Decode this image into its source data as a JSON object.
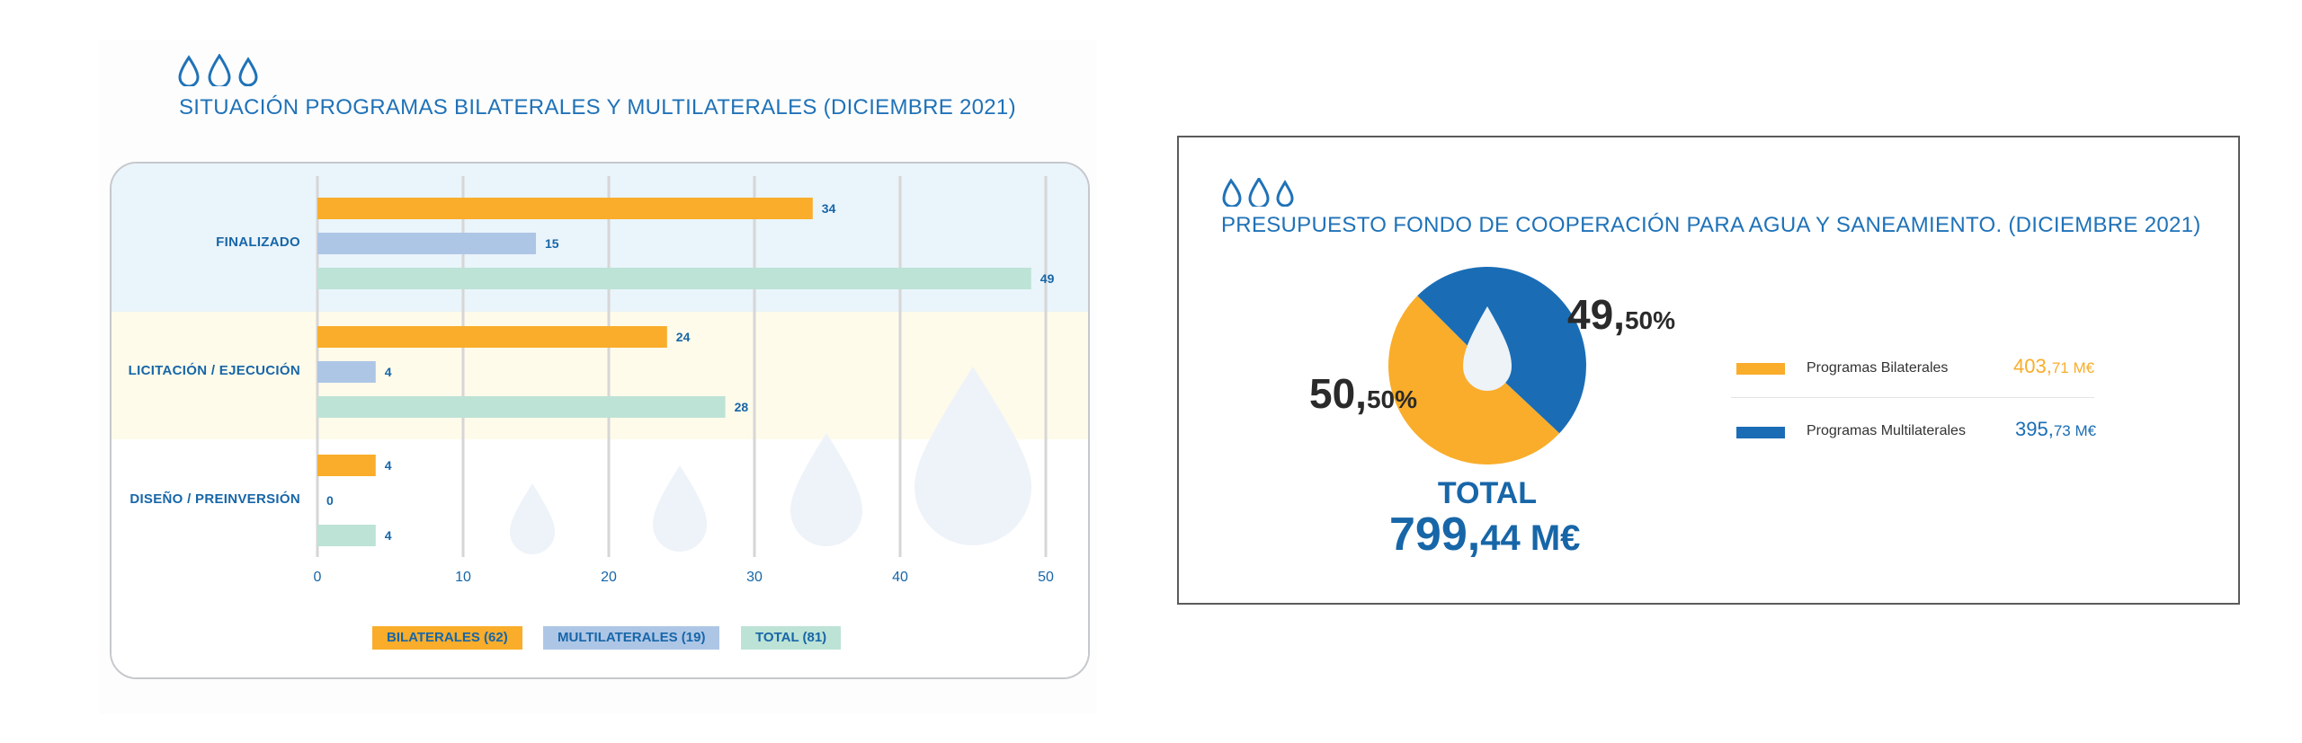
{
  "left_panel": {
    "title": "SITUACIÓN PROGRAMAS BILATERALES Y MULTILATERALES (DICIEMBRE 2021)"
  },
  "right_panel": {
    "title": "PRESUPUESTO FONDO DE COOPERACIÓN PARA AGUA Y SANEAMIENTO. (DICIEMBRE 2021)",
    "slices": [
      {
        "int": "50,",
        "dec": "50%"
      },
      {
        "int": "49,",
        "dec": "50%"
      }
    ],
    "total_label": "TOTAL",
    "total_int": "799,",
    "total_dec": "44 M€",
    "legend": [
      {
        "name": "Programas Bilaterales",
        "value_int": "403,",
        "value_dec": "71 M€",
        "color": "#f9ad2a"
      },
      {
        "name": "Programas Multilaterales",
        "value_int": "395,",
        "value_dec": "73 M€",
        "color": "#1a6db5"
      }
    ]
  },
  "chart_data": [
    {
      "type": "bar",
      "orientation": "horizontal",
      "title": "SITUACIÓN PROGRAMAS BILATERALES Y MULTILATERALES (DICIEMBRE 2021)",
      "categories": [
        "FINALIZADO",
        "LICITACIÓN / EJECUCIÓN",
        "DISEÑO / PREINVERSIÓN"
      ],
      "series": [
        {
          "name": "BILATERALES (62)",
          "values": [
            34,
            24,
            4
          ],
          "color": "#f9ad2a"
        },
        {
          "name": "MULTILATERALES (19)",
          "values": [
            15,
            4,
            0
          ],
          "color": "#aec6e6"
        },
        {
          "name": "TOTAL (81)",
          "values": [
            49,
            28,
            4
          ],
          "color": "#bde3d6"
        }
      ],
      "xlim": [
        0,
        50
      ],
      "xticks": [
        0,
        10,
        20,
        30,
        40,
        50
      ],
      "grid": true,
      "legend_position": "bottom",
      "band_colors": [
        "#eaf4fb",
        "#fefbea",
        "#fafbfc"
      ]
    },
    {
      "type": "pie",
      "title": "PRESUPUESTO FONDO DE COOPERACIÓN PARA AGUA Y SANEAMIENTO. (DICIEMBRE 2021)",
      "labels": [
        "Programas Bilaterales",
        "Programas Multilaterales"
      ],
      "values": [
        50.5,
        49.5
      ],
      "colors": [
        "#f9ad2a",
        "#1a6db5"
      ],
      "total": "799,44 M€"
    }
  ]
}
